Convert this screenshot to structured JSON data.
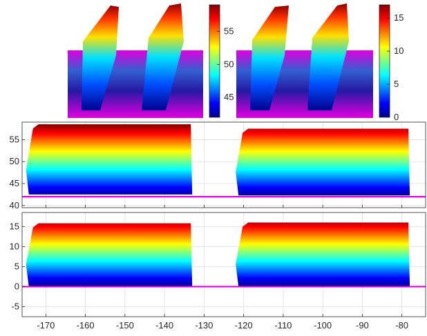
{
  "colors": {
    "ground_plane": "#e100e0",
    "axes_frame": "#262626",
    "grid": "#dedede",
    "colormap": "jet"
  },
  "chart_data": [
    {
      "type": "area",
      "name": "point-cloud-elevation",
      "colormap": "jet",
      "xlim": [
        -176,
        -74
      ],
      "ylim": [
        39.5,
        59
      ],
      "xticks": [
        -170,
        -160,
        -150,
        -140,
        -130,
        -120,
        -110,
        -100,
        -90,
        -80
      ],
      "yticks": [
        40,
        45,
        50,
        55
      ],
      "grid": true,
      "ground_line": 42,
      "color_range": [
        42,
        58.5
      ],
      "segments": [
        {
          "x_start": -175,
          "x_end": -133,
          "bottom": 42.5,
          "top": 58.5
        },
        {
          "x_start": -122,
          "x_end": -78,
          "bottom": 42.3,
          "top": 57.5
        }
      ]
    },
    {
      "type": "area",
      "name": "point-cloud-height",
      "colormap": "jet",
      "xlim": [
        -176,
        -74
      ],
      "ylim": [
        -7.5,
        18.5
      ],
      "xticks": [
        -170,
        -160,
        -150,
        -140,
        -130,
        -120,
        -110,
        -100,
        -90,
        -80
      ],
      "xtick_labels": [
        "-170",
        "-160",
        "-150",
        "-140",
        "-130",
        "-120",
        "-110",
        "-100",
        "-90",
        "-80"
      ],
      "yticks": [
        -5,
        0,
        5,
        10,
        15
      ],
      "ytick_labels": [
        "-5",
        "0",
        "5",
        "10",
        "15"
      ],
      "grid": true,
      "ground_line": 0,
      "color_range": [
        0,
        17
      ],
      "segments": [
        {
          "x_start": -175,
          "x_end": -133,
          "bottom": 0,
          "top": 15.8
        },
        {
          "x_start": -122,
          "x_end": -78,
          "bottom": 0,
          "top": 16.0
        }
      ]
    },
    {
      "type": "heatmap",
      "name": "colorbar-elevation",
      "colormap": "jet",
      "range": [
        42,
        59
      ],
      "ticks": [
        45,
        50,
        55
      ],
      "tick_labels": [
        "45",
        "50",
        "55"
      ]
    },
    {
      "type": "heatmap",
      "name": "colorbar-height",
      "colormap": "jet",
      "range": [
        0,
        17
      ],
      "ticks": [
        0,
        5,
        10,
        15
      ],
      "tick_labels": [
        "0",
        "5",
        "10",
        "15"
      ]
    }
  ]
}
